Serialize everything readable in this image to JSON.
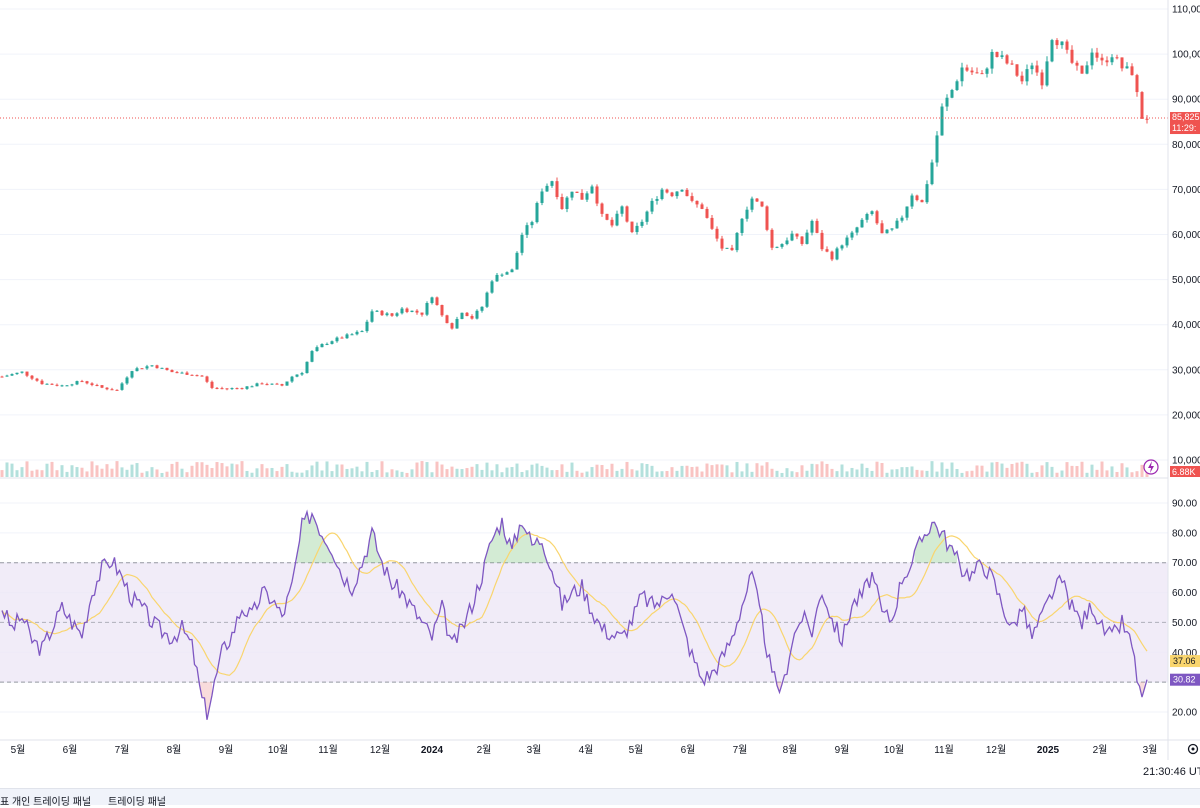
{
  "chart_data": {
    "type": "candlestick",
    "price_axis": {
      "ticks": [
        "110,00",
        "100,00",
        "90,000",
        "80,000",
        "70,000",
        "60,000",
        "50,000",
        "40,000",
        "30,000",
        "20,000",
        "10,000"
      ],
      "ylim": [
        10000,
        110000
      ]
    },
    "current_price_tag": "85,825",
    "countdown_tag": "11:29:",
    "volume_tag": "6.88K",
    "rsi_axis": {
      "ticks": [
        "90.00",
        "80.00",
        "70.00",
        "60.00",
        "50.00",
        "40.00",
        "30.00",
        "20.00"
      ],
      "ylim": [
        15,
        95
      ],
      "band": [
        30,
        70
      ],
      "midline": 50
    },
    "rsi_tag": "30.82",
    "rsi_ma_tag": "37.06",
    "time_labels": [
      "5월",
      "6월",
      "7월",
      "8월",
      "9월",
      "10월",
      "11월",
      "12월",
      "2024",
      "2월",
      "3월",
      "4월",
      "5월",
      "6월",
      "7월",
      "8월",
      "9월",
      "10월",
      "11월",
      "12월",
      "2025",
      "2월",
      "3월"
    ],
    "price_path": [
      [
        0,
        28500
      ],
      [
        4,
        29500
      ],
      [
        8,
        27000
      ],
      [
        12,
        26500
      ],
      [
        16,
        27500
      ],
      [
        20,
        26000
      ],
      [
        23,
        25500
      ],
      [
        26,
        30000
      ],
      [
        30,
        31000
      ],
      [
        34,
        29500
      ],
      [
        38,
        29000
      ],
      [
        40,
        28500
      ],
      [
        42,
        26000
      ],
      [
        45,
        25800
      ],
      [
        48,
        26000
      ],
      [
        52,
        27000
      ],
      [
        56,
        26500
      ],
      [
        58,
        28500
      ],
      [
        60,
        29500
      ],
      [
        62,
        34000
      ],
      [
        64,
        35500
      ],
      [
        66,
        36500
      ],
      [
        69,
        37500
      ],
      [
        72,
        38500
      ],
      [
        74,
        43000
      ],
      [
        76,
        42500
      ],
      [
        78,
        42000
      ],
      [
        80,
        43500
      ],
      [
        84,
        42500
      ],
      [
        86,
        46500
      ],
      [
        88,
        42000
      ],
      [
        90,
        39500
      ],
      [
        92,
        43000
      ],
      [
        94,
        41500
      ],
      [
        96,
        44000
      ],
      [
        98,
        50000
      ],
      [
        100,
        51500
      ],
      [
        102,
        52000
      ],
      [
        104,
        60000
      ],
      [
        106,
        63000
      ],
      [
        108,
        70000
      ],
      [
        110,
        72000
      ],
      [
        112,
        66000
      ],
      [
        114,
        70000
      ],
      [
        116,
        68000
      ],
      [
        118,
        71000
      ],
      [
        120,
        64000
      ],
      [
        122,
        62000
      ],
      [
        124,
        66000
      ],
      [
        126,
        60000
      ],
      [
        128,
        63000
      ],
      [
        130,
        67000
      ],
      [
        132,
        70000
      ],
      [
        134,
        69000
      ],
      [
        136,
        70500
      ],
      [
        138,
        67000
      ],
      [
        140,
        66000
      ],
      [
        142,
        61000
      ],
      [
        144,
        57000
      ],
      [
        146,
        56000
      ],
      [
        148,
        64000
      ],
      [
        150,
        68000
      ],
      [
        152,
        66000
      ],
      [
        154,
        57000
      ],
      [
        156,
        58000
      ],
      [
        158,
        60000
      ],
      [
        160,
        58000
      ],
      [
        162,
        63000
      ],
      [
        164,
        57000
      ],
      [
        166,
        55000
      ],
      [
        168,
        58000
      ],
      [
        170,
        60000
      ],
      [
        172,
        63000
      ],
      [
        174,
        65000
      ],
      [
        176,
        60000
      ],
      [
        178,
        61000
      ],
      [
        180,
        64000
      ],
      [
        182,
        69000
      ],
      [
        184,
        67000
      ],
      [
        186,
        76000
      ],
      [
        188,
        88000
      ],
      [
        190,
        92000
      ],
      [
        192,
        97000
      ],
      [
        194,
        96000
      ],
      [
        196,
        95000
      ],
      [
        198,
        100000
      ],
      [
        200,
        99000
      ],
      [
        202,
        97000
      ],
      [
        204,
        94000
      ],
      [
        206,
        98000
      ],
      [
        208,
        94000
      ],
      [
        210,
        104000
      ],
      [
        212,
        102000
      ],
      [
        214,
        98000
      ],
      [
        216,
        95000
      ],
      [
        218,
        101000
      ],
      [
        220,
        98000
      ],
      [
        222,
        100000
      ],
      [
        224,
        97000
      ],
      [
        226,
        96000
      ],
      [
        228,
        86000
      ],
      [
        229,
        85825
      ]
    ],
    "rsi_path": [
      [
        0,
        55
      ],
      [
        2,
        48
      ],
      [
        4,
        52
      ],
      [
        6,
        44
      ],
      [
        8,
        41
      ],
      [
        10,
        48
      ],
      [
        12,
        55
      ],
      [
        14,
        50
      ],
      [
        16,
        46
      ],
      [
        18,
        60
      ],
      [
        20,
        68
      ],
      [
        22,
        71
      ],
      [
        24,
        65
      ],
      [
        26,
        58
      ],
      [
        28,
        55
      ],
      [
        30,
        50
      ],
      [
        32,
        47
      ],
      [
        34,
        45
      ],
      [
        36,
        48
      ],
      [
        38,
        42
      ],
      [
        40,
        24
      ],
      [
        41,
        20
      ],
      [
        42,
        26
      ],
      [
        44,
        40
      ],
      [
        46,
        46
      ],
      [
        48,
        55
      ],
      [
        50,
        52
      ],
      [
        52,
        60
      ],
      [
        54,
        58
      ],
      [
        56,
        52
      ],
      [
        58,
        62
      ],
      [
        60,
        82
      ],
      [
        62,
        87
      ],
      [
        64,
        80
      ],
      [
        66,
        75
      ],
      [
        68,
        66
      ],
      [
        70,
        62
      ],
      [
        72,
        70
      ],
      [
        74,
        80
      ],
      [
        76,
        70
      ],
      [
        78,
        63
      ],
      [
        80,
        60
      ],
      [
        82,
        55
      ],
      [
        84,
        50
      ],
      [
        86,
        45
      ],
      [
        88,
        55
      ],
      [
        90,
        42
      ],
      [
        92,
        48
      ],
      [
        94,
        56
      ],
      [
        96,
        66
      ],
      [
        98,
        78
      ],
      [
        100,
        84
      ],
      [
        102,
        74
      ],
      [
        104,
        85
      ],
      [
        106,
        76
      ],
      [
        108,
        78
      ],
      [
        110,
        68
      ],
      [
        112,
        56
      ],
      [
        114,
        60
      ],
      [
        116,
        62
      ],
      [
        118,
        54
      ],
      [
        120,
        48
      ],
      [
        122,
        46
      ],
      [
        124,
        45
      ],
      [
        126,
        51
      ],
      [
        128,
        59
      ],
      [
        130,
        56
      ],
      [
        132,
        57
      ],
      [
        134,
        62
      ],
      [
        136,
        49
      ],
      [
        138,
        39
      ],
      [
        140,
        31
      ],
      [
        142,
        33
      ],
      [
        144,
        38
      ],
      [
        146,
        45
      ],
      [
        148,
        56
      ],
      [
        150,
        66
      ],
      [
        152,
        50
      ],
      [
        154,
        32
      ],
      [
        156,
        27
      ],
      [
        158,
        44
      ],
      [
        160,
        52
      ],
      [
        162,
        47
      ],
      [
        164,
        61
      ],
      [
        166,
        51
      ],
      [
        168,
        44
      ],
      [
        170,
        56
      ],
      [
        172,
        59
      ],
      [
        174,
        66
      ],
      [
        176,
        53
      ],
      [
        178,
        51
      ],
      [
        180,
        65
      ],
      [
        182,
        70
      ],
      [
        184,
        78
      ],
      [
        186,
        84
      ],
      [
        188,
        80
      ],
      [
        190,
        74
      ],
      [
        192,
        68
      ],
      [
        194,
        66
      ],
      [
        196,
        70
      ],
      [
        198,
        65
      ],
      [
        200,
        56
      ],
      [
        202,
        48
      ],
      [
        204,
        55
      ],
      [
        206,
        45
      ],
      [
        208,
        52
      ],
      [
        210,
        60
      ],
      [
        212,
        64
      ],
      [
        214,
        55
      ],
      [
        216,
        50
      ],
      [
        218,
        56
      ],
      [
        220,
        48
      ],
      [
        222,
        45
      ],
      [
        224,
        50
      ],
      [
        226,
        42
      ],
      [
        227,
        32
      ],
      [
        228,
        25
      ],
      [
        229,
        30.82
      ]
    ]
  },
  "footer": {
    "time_readout": "21:30:46 UT",
    "tabs": [
      "표 개인 트레이딩 패널",
      "트레이딩 패널"
    ]
  },
  "colors": {
    "up": "#26a69a",
    "down": "#ef5350",
    "rsi_line": "#7e57c2",
    "rsi_ma": "#f9d56e",
    "rsi_band_fill": "#ede7f6",
    "price_tag": "#ef5350",
    "rsi_tag": "#7e57c2",
    "rsi_ma_tag": "#f9d56e"
  }
}
